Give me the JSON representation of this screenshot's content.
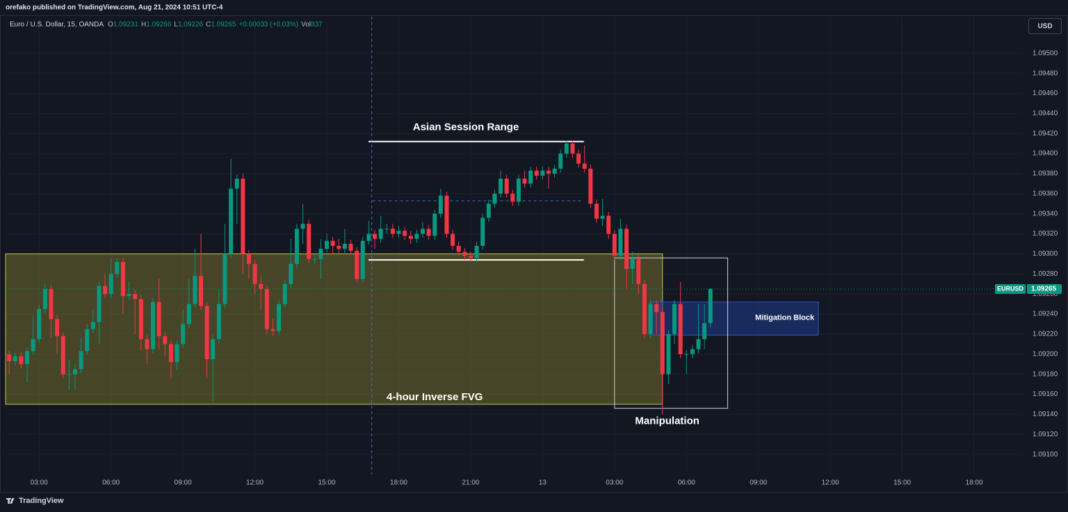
{
  "chart_data": {
    "type": "candlestick",
    "header": "orefako published on TradingView.com, Aug 21, 2024 10:51 UTC-4",
    "symbol": "Euro / U.S. Dollar, 15, OANDA",
    "quote": [
      {
        "key": "O",
        "value": "1.09231"
      },
      {
        "key": "H",
        "value": "1.09266"
      },
      {
        "key": "L",
        "value": "1.09226"
      },
      {
        "key": "C",
        "value": "1.09265"
      },
      {
        "key": "",
        "value": "+0.00033 (+0.03%)"
      },
      {
        "key": "Vol",
        "value": "837"
      }
    ],
    "currency": "USD",
    "last_price_label": "EURUSD",
    "last_price": 1.09265,
    "brand": "TradingView",
    "up_color": "#089981",
    "down_color": "#f23645",
    "grid": true,
    "xlim": [
      1.6,
      44.0
    ],
    "ylim": [
      1.0908,
      1.09522
    ],
    "xticks": [
      {
        "value": 3,
        "label": "03:00"
      },
      {
        "value": 6,
        "label": "06:00"
      },
      {
        "value": 9,
        "label": "09:00"
      },
      {
        "value": 12,
        "label": "12:00"
      },
      {
        "value": 15,
        "label": "15:00"
      },
      {
        "value": 18,
        "label": "18:00"
      },
      {
        "value": 21,
        "label": "21:00"
      },
      {
        "value": 24,
        "label": "13"
      },
      {
        "value": 27,
        "label": "03:00"
      },
      {
        "value": 30,
        "label": "06:00"
      },
      {
        "value": 33,
        "label": "09:00"
      },
      {
        "value": 36,
        "label": "12:00"
      },
      {
        "value": 39,
        "label": "15:00"
      },
      {
        "value": 42,
        "label": "18:00"
      }
    ],
    "yticks": [
      {
        "value": 1.091,
        "label": "1.09100"
      },
      {
        "value": 1.0912,
        "label": "1.09120"
      },
      {
        "value": 1.0914,
        "label": "1.09140"
      },
      {
        "value": 1.0916,
        "label": "1.09160"
      },
      {
        "value": 1.0918,
        "label": "1.09180"
      },
      {
        "value": 1.092,
        "label": "1.09200"
      },
      {
        "value": 1.0922,
        "label": "1.09220"
      },
      {
        "value": 1.0924,
        "label": "1.09240"
      },
      {
        "value": 1.0926,
        "label": "1.09260"
      },
      {
        "value": 1.0928,
        "label": "1.09280"
      },
      {
        "value": 1.093,
        "label": "1.09300"
      },
      {
        "value": 1.0932,
        "label": "1.09320"
      },
      {
        "value": 1.0934,
        "label": "1.09340"
      },
      {
        "value": 1.0936,
        "label": "1.09360"
      },
      {
        "value": 1.0938,
        "label": "1.09380"
      },
      {
        "value": 1.094,
        "label": "1.09400"
      },
      {
        "value": 1.0942,
        "label": "1.09420"
      },
      {
        "value": 1.0944,
        "label": "1.09440"
      },
      {
        "value": 1.0946,
        "label": "1.09460"
      },
      {
        "value": 1.0948,
        "label": "1.09480"
      },
      {
        "value": 1.095,
        "label": "1.09500"
      }
    ],
    "x": [
      1.75,
      2,
      2.25,
      2.5,
      2.75,
      3,
      3.25,
      3.5,
      3.75,
      4,
      4.25,
      4.5,
      4.75,
      5,
      5.25,
      5.5,
      5.75,
      6,
      6.25,
      6.5,
      6.75,
      7,
      7.25,
      7.5,
      7.75,
      8,
      8.25,
      8.5,
      8.75,
      9,
      9.25,
      9.5,
      9.75,
      10,
      10.25,
      10.5,
      10.75,
      11,
      11.25,
      11.5,
      11.75,
      12,
      12.25,
      12.5,
      12.75,
      13,
      13.25,
      13.5,
      13.75,
      14,
      14.25,
      14.5,
      14.75,
      15,
      15.25,
      15.5,
      15.75,
      16,
      16.25,
      16.5,
      16.75,
      17,
      17.25,
      17.5,
      17.75,
      18,
      18.25,
      18.5,
      18.75,
      19,
      19.25,
      19.5,
      19.75,
      20,
      20.25,
      20.5,
      20.75,
      21,
      21.25,
      21.5,
      21.75,
      22,
      22.25,
      22.5,
      22.75,
      23,
      23.25,
      23.5,
      23.75,
      24,
      24.25,
      24.5,
      24.75,
      25,
      25.25,
      25.5,
      25.75,
      26,
      26.25,
      26.5,
      26.75,
      27,
      27.25,
      27.5,
      27.75,
      28,
      28.25,
      28.5,
      28.75,
      29,
      29.25,
      29.5,
      29.75,
      30,
      30.25,
      30.5,
      30.75,
      31
    ],
    "open": [
      1.092,
      1.09193,
      1.09198,
      1.0919,
      1.09203,
      1.09215,
      1.09245,
      1.09265,
      1.09235,
      1.09218,
      1.0918,
      1.0918,
      1.09185,
      1.09203,
      1.09225,
      1.09232,
      1.09268,
      1.0926,
      1.0928,
      1.09292,
      1.09258,
      1.0926,
      1.09255,
      1.09215,
      1.09205,
      1.09252,
      1.09218,
      1.0921,
      1.09192,
      1.0921,
      1.0923,
      1.0925,
      1.09278,
      1.09248,
      1.09195,
      1.09215,
      1.0925,
      1.093,
      1.09365,
      1.09375,
      1.093,
      1.0929,
      1.0927,
      1.09265,
      1.09225,
      1.09223,
      1.0925,
      1.0927,
      1.0929,
      1.09325,
      1.0933,
      1.09295,
      1.09295,
      1.09305,
      1.09313,
      1.09308,
      1.09305,
      1.0931,
      1.09303,
      1.09275,
      1.09313,
      1.0932,
      1.09315,
      1.09325,
      1.09325,
      1.0932,
      1.09323,
      1.09318,
      1.09315,
      1.0932,
      1.09325,
      1.09318,
      1.0934,
      1.09358,
      1.0932,
      1.09308,
      1.09302,
      1.09298,
      1.09296,
      1.09308,
      1.09336,
      1.0935,
      1.0936,
      1.09375,
      1.0936,
      1.09352,
      1.09375,
      1.0937,
      1.09383,
      1.09378,
      1.09383,
      1.0938,
      1.09385,
      1.094,
      1.0941,
      1.094,
      1.0939,
      1.09385,
      1.0935,
      1.09335,
      1.09338,
      1.0932,
      1.09298,
      1.09325,
      1.09285,
      1.09295,
      1.0927,
      1.0922,
      1.0925,
      1.09242,
      1.0918,
      1.0922,
      1.0925,
      1.092,
      1.092,
      1.09205,
      1.09215,
      1.09231
    ],
    "high": [
      1.09204,
      1.09202,
      1.09202,
      1.09207,
      1.09238,
      1.09249,
      1.0927,
      1.09269,
      1.09239,
      1.09222,
      1.09194,
      1.0919,
      1.09216,
      1.0923,
      1.09245,
      1.09272,
      1.0928,
      1.09295,
      1.09296,
      1.09296,
      1.09272,
      1.09264,
      1.09259,
      1.09219,
      1.09256,
      1.09275,
      1.09222,
      1.09214,
      1.09214,
      1.09245,
      1.09275,
      1.09305,
      1.0932,
      1.09252,
      1.09219,
      1.09265,
      1.0933,
      1.09395,
      1.09379,
      1.0938,
      1.09304,
      1.09294,
      1.09278,
      1.09269,
      1.09235,
      1.09254,
      1.09274,
      1.09315,
      1.0933,
      1.0935,
      1.09334,
      1.093,
      1.09315,
      1.0932,
      1.09317,
      1.09315,
      1.09325,
      1.09314,
      1.09307,
      1.09317,
      1.09333,
      1.09324,
      1.09338,
      1.0933,
      1.0933,
      1.09328,
      1.09327,
      1.09323,
      1.09324,
      1.09332,
      1.09329,
      1.09344,
      1.09365,
      1.09362,
      1.09324,
      1.09312,
      1.09306,
      1.09302,
      1.09312,
      1.0934,
      1.09354,
      1.09364,
      1.09383,
      1.09379,
      1.09364,
      1.09379,
      1.09383,
      1.09387,
      1.09387,
      1.09387,
      1.09387,
      1.09389,
      1.09404,
      1.09413,
      1.09413,
      1.09404,
      1.09408,
      1.09389,
      1.09354,
      1.09355,
      1.09342,
      1.09324,
      1.09335,
      1.09329,
      1.09302,
      1.09299,
      1.09274,
      1.09254,
      1.09254,
      1.09246,
      1.09224,
      1.09254,
      1.09272,
      1.09204,
      1.09209,
      1.0925,
      1.0925,
      1.09266
    ],
    "low": [
      1.0918,
      1.09189,
      1.09186,
      1.09172,
      1.09199,
      1.09211,
      1.09241,
      1.09216,
      1.092,
      1.09176,
      1.09165,
      1.09165,
      1.09181,
      1.09199,
      1.09221,
      1.0921,
      1.09256,
      1.09256,
      1.09276,
      1.0924,
      1.09254,
      1.0922,
      1.09203,
      1.0919,
      1.09201,
      1.09205,
      1.09198,
      1.09175,
      1.09184,
      1.09206,
      1.09226,
      1.09246,
      1.09244,
      1.09176,
      1.09153,
      1.09211,
      1.09246,
      1.09296,
      1.0933,
      1.0928,
      1.09275,
      1.0926,
      1.09245,
      1.0922,
      1.09218,
      1.09219,
      1.09246,
      1.09266,
      1.09286,
      1.0931,
      1.09291,
      1.0929,
      1.09275,
      1.09301,
      1.093,
      1.09301,
      1.09301,
      1.09299,
      1.09271,
      1.09271,
      1.09309,
      1.09305,
      1.09311,
      1.0932,
      1.09316,
      1.09316,
      1.09314,
      1.0931,
      1.09311,
      1.09316,
      1.09314,
      1.09314,
      1.09336,
      1.09316,
      1.09304,
      1.09298,
      1.09294,
      1.09292,
      1.09292,
      1.09304,
      1.09332,
      1.09346,
      1.09356,
      1.09356,
      1.09348,
      1.09348,
      1.09366,
      1.09366,
      1.09374,
      1.09374,
      1.09365,
      1.09376,
      1.09381,
      1.09396,
      1.09396,
      1.09386,
      1.09381,
      1.09346,
      1.09331,
      1.09328,
      1.09315,
      1.09294,
      1.09294,
      1.09265,
      1.0927,
      1.0926,
      1.09216,
      1.09216,
      1.0922,
      1.0914,
      1.0917,
      1.0921,
      1.09196,
      1.0918,
      1.09196,
      1.09201,
      1.09205,
      1.09226
    ],
    "close": [
      1.09193,
      1.09198,
      1.0919,
      1.09203,
      1.09215,
      1.09245,
      1.09265,
      1.09235,
      1.09218,
      1.0918,
      1.0918,
      1.09185,
      1.09203,
      1.09225,
      1.09232,
      1.09268,
      1.0926,
      1.0928,
      1.09292,
      1.09258,
      1.0926,
      1.09255,
      1.09215,
      1.09205,
      1.09252,
      1.09218,
      1.0921,
      1.09192,
      1.0921,
      1.0923,
      1.0925,
      1.09278,
      1.09248,
      1.09195,
      1.09215,
      1.0925,
      1.093,
      1.09365,
      1.09375,
      1.093,
      1.0929,
      1.0927,
      1.09265,
      1.09225,
      1.09223,
      1.0925,
      1.0927,
      1.0929,
      1.09325,
      1.0933,
      1.09295,
      1.09295,
      1.09305,
      1.09313,
      1.09308,
      1.09305,
      1.0931,
      1.09303,
      1.09275,
      1.09313,
      1.0932,
      1.09315,
      1.09325,
      1.09325,
      1.0932,
      1.09323,
      1.09318,
      1.09315,
      1.0932,
      1.09325,
      1.09318,
      1.0934,
      1.09358,
      1.0932,
      1.09308,
      1.09302,
      1.09298,
      1.09296,
      1.09308,
      1.09336,
      1.0935,
      1.0936,
      1.09375,
      1.0936,
      1.09352,
      1.09375,
      1.0937,
      1.09383,
      1.09378,
      1.09383,
      1.0938,
      1.09385,
      1.094,
      1.0941,
      1.094,
      1.0939,
      1.09385,
      1.0935,
      1.09335,
      1.09338,
      1.0932,
      1.09298,
      1.09325,
      1.09285,
      1.09295,
      1.0927,
      1.0922,
      1.0925,
      1.09242,
      1.0918,
      1.0922,
      1.0925,
      1.092,
      1.092,
      1.09205,
      1.09215,
      1.09231,
      1.09265
    ],
    "annotations": [
      {
        "kind": "zone",
        "x": [
          1.6,
          29.0
        ],
        "y": [
          1.0915,
          1.093
        ],
        "fill": "#8c8530",
        "stroke": "#c9c25a",
        "text": "4-hour Inverse FVG",
        "text_x": 19.5,
        "text_y": 1.09157
      },
      {
        "kind": "zone",
        "x": [
          28.54,
          35.5
        ],
        "y": [
          1.09219,
          1.09252
        ],
        "fill": "#1f3a8c",
        "stroke": "#2f55c8",
        "text": "Mitigation Block",
        "text_x": 34.1,
        "text_y": 1.09236
      },
      {
        "kind": "box",
        "x": [
          27.0,
          31.72
        ],
        "y": [
          1.09146,
          1.09296
        ],
        "stroke": "#d0d4dc",
        "text": "Manipulation",
        "text_x": 29.2,
        "text_y": 1.09133
      },
      {
        "kind": "hline",
        "x": [
          16.74,
          25.72
        ],
        "y": 1.09412,
        "stroke": "#ffffff",
        "text": "Asian Session Range",
        "text_x": 20.8,
        "text_y": 1.09426
      },
      {
        "kind": "hline",
        "x": [
          16.74,
          25.72
        ],
        "y": 1.09294,
        "stroke": "#ffffff"
      },
      {
        "kind": "hline",
        "x": [
          16.9,
          25.72
        ],
        "y": 1.09353,
        "stroke": "#3f6fd0",
        "dash": true
      },
      {
        "kind": "vline",
        "x": 16.875,
        "stroke": "#3f6fd0",
        "dash": true
      }
    ]
  }
}
